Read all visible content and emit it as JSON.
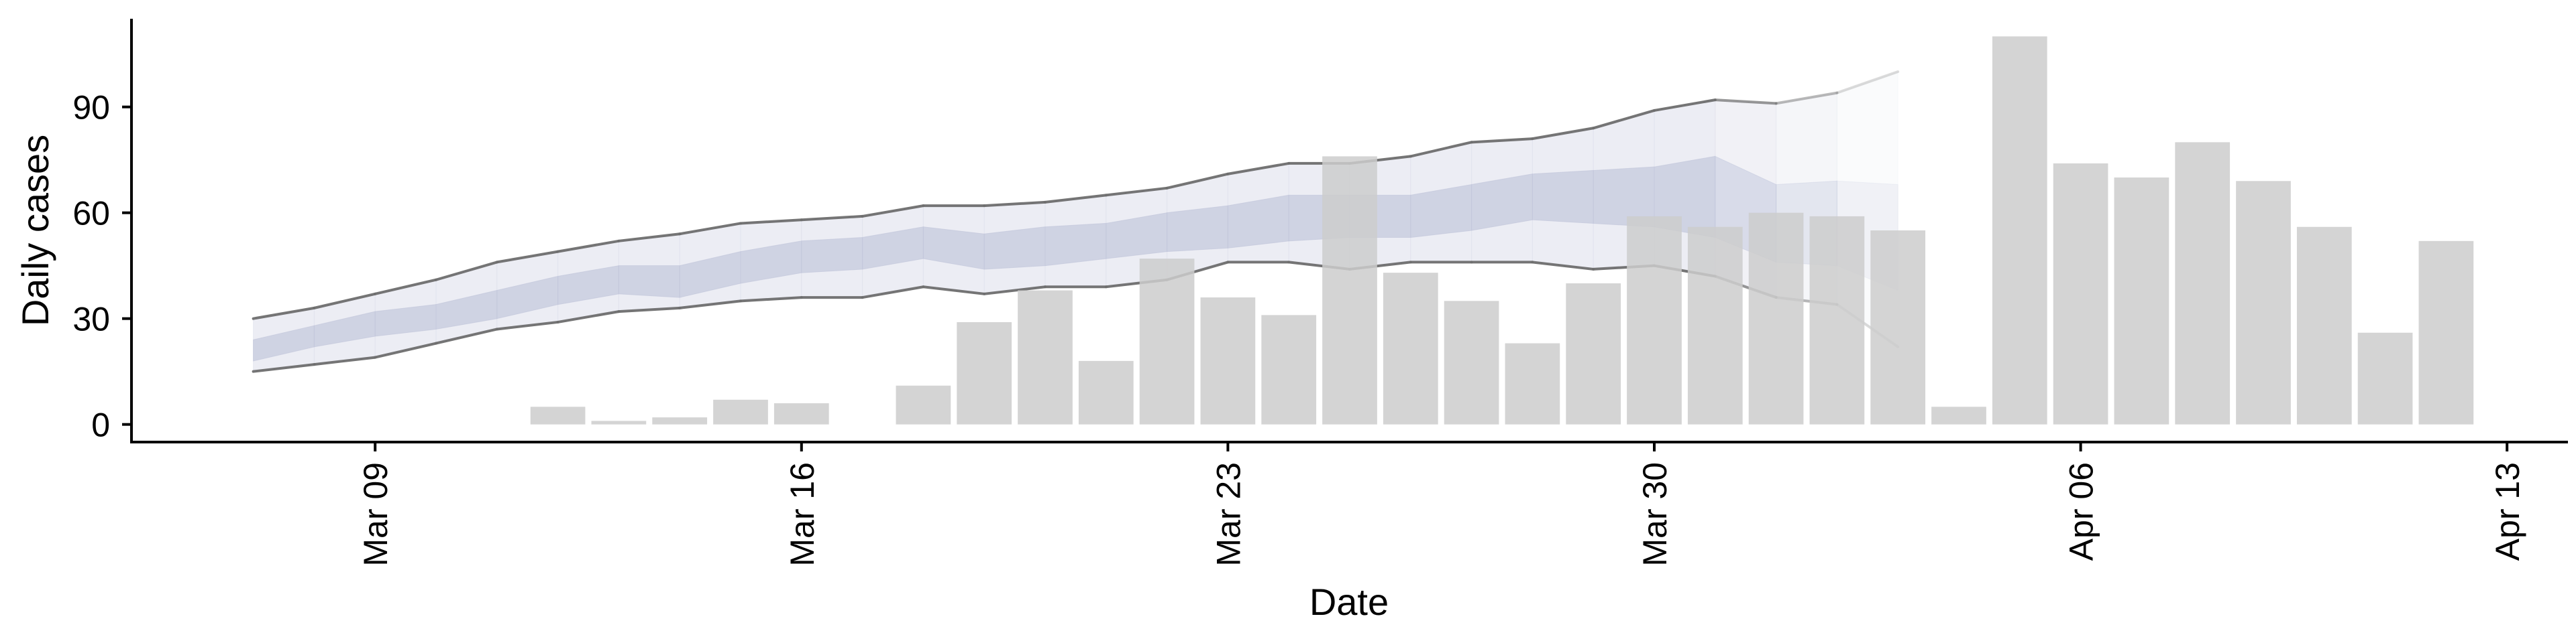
{
  "chart_data": {
    "type": "bar",
    "title": "",
    "xlabel": "Date",
    "ylabel": "Daily cases",
    "x_ticks": [
      "Mar 09",
      "Mar 16",
      "Mar 23",
      "Mar 30",
      "Apr 06",
      "Apr 13"
    ],
    "x_tick_dates": [
      "2020-03-09",
      "2020-03-16",
      "2020-03-23",
      "2020-03-30",
      "2020-04-06",
      "2020-04-13"
    ],
    "y_ticks": [
      0,
      30,
      60,
      90
    ],
    "ylim": [
      -5,
      115
    ],
    "xlim": [
      "2020-03-05",
      "2020-04-14"
    ],
    "grid": false,
    "legend": "none",
    "colors": {
      "bars": "#cccccc",
      "band_outer": "#dfe1ec",
      "band_inner": "#c3c8dc",
      "bounds_line": "#6e6e6e"
    },
    "bars": {
      "dates": [
        "2020-03-12",
        "2020-03-13",
        "2020-03-14",
        "2020-03-15",
        "2020-03-16",
        "2020-03-18",
        "2020-03-19",
        "2020-03-20",
        "2020-03-21",
        "2020-03-22",
        "2020-03-23",
        "2020-03-24",
        "2020-03-25",
        "2020-03-26",
        "2020-03-27",
        "2020-03-28",
        "2020-03-29",
        "2020-03-30",
        "2020-03-31",
        "2020-04-01",
        "2020-04-02",
        "2020-04-03",
        "2020-04-04",
        "2020-04-05",
        "2020-04-06",
        "2020-04-07",
        "2020-04-08",
        "2020-04-09",
        "2020-04-10",
        "2020-04-11",
        "2020-04-12"
      ],
      "values": [
        5,
        1,
        2,
        7,
        6,
        11,
        29,
        38,
        18,
        47,
        36,
        31,
        76,
        43,
        35,
        23,
        40,
        59,
        56,
        60,
        59,
        55,
        5,
        110,
        74,
        70,
        80,
        69,
        56,
        26,
        52
      ]
    },
    "forecast": {
      "dates": [
        "2020-03-07",
        "2020-03-08",
        "2020-03-09",
        "2020-03-10",
        "2020-03-11",
        "2020-03-12",
        "2020-03-13",
        "2020-03-14",
        "2020-03-15",
        "2020-03-16",
        "2020-03-17",
        "2020-03-18",
        "2020-03-19",
        "2020-03-20",
        "2020-03-21",
        "2020-03-22",
        "2020-03-23",
        "2020-03-24",
        "2020-03-25",
        "2020-03-26",
        "2020-03-27",
        "2020-03-28",
        "2020-03-29",
        "2020-03-30",
        "2020-03-31",
        "2020-04-01",
        "2020-04-02",
        "2020-04-03"
      ],
      "outer_upper": [
        30,
        33,
        37,
        41,
        46,
        49,
        52,
        54,
        57,
        58,
        59,
        62,
        62,
        63,
        65,
        67,
        71,
        74,
        74,
        76,
        80,
        81,
        84,
        89,
        92,
        91,
        94,
        100
      ],
      "outer_lower": [
        15,
        17,
        19,
        23,
        27,
        29,
        32,
        33,
        35,
        36,
        36,
        39,
        37,
        39,
        39,
        41,
        46,
        46,
        44,
        46,
        46,
        46,
        44,
        45,
        42,
        36,
        34,
        22
      ],
      "inner_upper": [
        24,
        28,
        32,
        34,
        38,
        42,
        45,
        45,
        49,
        52,
        53,
        56,
        54,
        56,
        57,
        60,
        62,
        65,
        65,
        65,
        68,
        71,
        72,
        73,
        76,
        68,
        69,
        68
      ],
      "inner_lower": [
        18,
        22,
        25,
        27,
        30,
        34,
        37,
        36,
        40,
        43,
        44,
        47,
        44,
        45,
        47,
        49,
        50,
        52,
        53,
        53,
        55,
        58,
        57,
        56,
        53,
        46,
        45,
        38
      ],
      "fade_from": "2020-03-31"
    }
  }
}
